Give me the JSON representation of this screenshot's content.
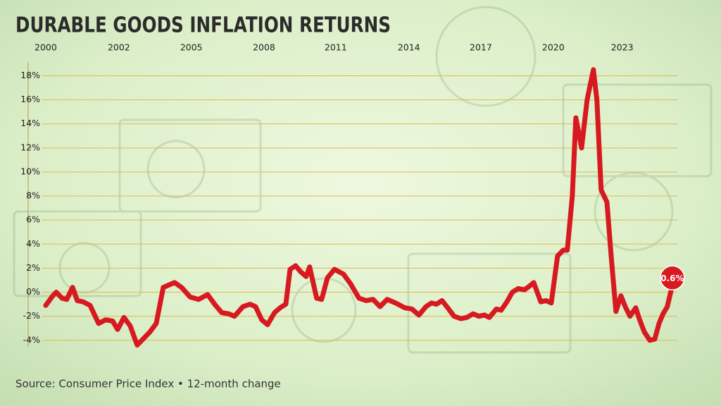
{
  "chart_data": {
    "type": "line",
    "title": "DURABLE GOODS INFLATION RETURNS",
    "source": "Source: Consumer Price Index • 12-month change",
    "color": "#d71920",
    "grid": true,
    "x": [
      2000.0,
      2000.28,
      2000.42,
      2000.65,
      2000.84,
      2001.07,
      2001.26,
      2001.49,
      2001.77,
      2002.11,
      2002.39,
      2002.67,
      2002.87,
      2003.12,
      2003.37,
      2003.65,
      2003.93,
      2004.16,
      2004.41,
      2004.69,
      2004.92,
      2005.14,
      2005.42,
      2005.76,
      2006.1,
      2006.46,
      2006.74,
      2007.02,
      2007.3,
      2007.53,
      2007.87,
      2008.15,
      2008.37,
      2008.62,
      2008.85,
      2009.13,
      2009.35,
      2009.58,
      2009.75,
      2009.97,
      2010.17,
      2010.39,
      2010.53,
      2010.81,
      2011.01,
      2011.24,
      2011.52,
      2011.88,
      2012.16,
      2012.5,
      2012.78,
      2013.06,
      2013.34,
      2013.62,
      2013.96,
      2014.33,
      2014.61,
      2014.89,
      2015.17,
      2015.39,
      2015.59,
      2015.81,
      2016.04,
      2016.29,
      2016.57,
      2016.8,
      2017.05,
      2017.28,
      2017.5,
      2017.7,
      2017.98,
      2018.17,
      2018.4,
      2018.62,
      2018.85,
      2019.1,
      2019.3,
      2019.47,
      2019.75,
      2019.97,
      2020.17,
      2020.42,
      2020.65,
      2020.81,
      2021.01,
      2021.15,
      2021.38,
      2021.6,
      2021.85,
      2021.99,
      2022.16,
      2022.39,
      2022.56,
      2022.75,
      2022.95,
      2023.12,
      2023.31,
      2023.54,
      2023.68,
      2023.88,
      2024.1,
      2024.3,
      2024.47,
      2024.63,
      2024.8,
      2025.0
    ],
    "values": [
      -1.1,
      -0.3,
      0.0,
      -0.5,
      -0.6,
      0.4,
      -0.7,
      -0.8,
      -1.1,
      -2.6,
      -2.3,
      -2.4,
      -3.1,
      -2.1,
      -2.8,
      -4.4,
      -3.8,
      -3.3,
      -2.6,
      0.4,
      0.6,
      0.8,
      0.4,
      -0.4,
      -0.6,
      -0.2,
      -1.0,
      -1.7,
      -1.8,
      -2.0,
      -1.2,
      -1.0,
      -1.2,
      -2.3,
      -2.7,
      -1.7,
      -1.3,
      -1.0,
      1.9,
      2.2,
      1.7,
      1.3,
      2.1,
      -0.5,
      -0.6,
      1.2,
      1.9,
      1.5,
      0.7,
      -0.5,
      -0.7,
      -0.6,
      -1.2,
      -0.6,
      -0.9,
      -1.3,
      -1.4,
      -1.9,
      -1.2,
      -0.9,
      -1.0,
      -0.7,
      -1.3,
      -2.0,
      -2.2,
      -2.1,
      -1.8,
      -2.0,
      -1.9,
      -2.1,
      -1.4,
      -1.5,
      -0.8,
      0.0,
      0.3,
      0.2,
      0.5,
      0.8,
      -0.8,
      -0.7,
      -0.9,
      3.0,
      3.5,
      3.5,
      8.0,
      14.5,
      12.0,
      16.0,
      18.5,
      16.0,
      8.5,
      7.5,
      3.0,
      -1.6,
      -0.3,
      -1.2,
      -2.0,
      -1.3,
      -2.2,
      -3.3,
      -4.0,
      -3.9,
      -2.6,
      -1.8,
      -1.2,
      0.6
    ],
    "value_labels": [
      null,
      null,
      null,
      null,
      null,
      null,
      null,
      null,
      null,
      null,
      null,
      null,
      null,
      null,
      null,
      null,
      null,
      null,
      null,
      null,
      null,
      null,
      null,
      null,
      null,
      null,
      null,
      null,
      null,
      null,
      null,
      null,
      null,
      null,
      null,
      null,
      null,
      null,
      null,
      null,
      null,
      null,
      null,
      null,
      null,
      null,
      null,
      null,
      null,
      null,
      null,
      null,
      null,
      null,
      null,
      null,
      null,
      null,
      null,
      null,
      null,
      null,
      null,
      null,
      null,
      null,
      null,
      null,
      null,
      null,
      null,
      null,
      null,
      null,
      null,
      null,
      null,
      null,
      null,
      null,
      null,
      null,
      null,
      null,
      null,
      null,
      null,
      null,
      null,
      null,
      null,
      null,
      null,
      null,
      null,
      null,
      null,
      null,
      null,
      null,
      null,
      null,
      null,
      null,
      null,
      "0.6%"
    ],
    "xlim": [
      1999.3,
      2025.2
    ],
    "xticks": [
      {
        "value": 2000,
        "label": "2000"
      },
      {
        "value": 2002.92,
        "label": "2002"
      },
      {
        "value": 2005.81,
        "label": "2005"
      },
      {
        "value": 2008.71,
        "label": "2008"
      },
      {
        "value": 2011.57,
        "label": "2011"
      },
      {
        "value": 2014.49,
        "label": "2014"
      },
      {
        "value": 2017.36,
        "label": "2017"
      },
      {
        "value": 2020.25,
        "label": "2020"
      },
      {
        "value": 2023.0,
        "label": "2023"
      }
    ],
    "ylim": [
      -4.6,
      19.2
    ],
    "yticks": [
      {
        "value": -4,
        "label": "-4%"
      },
      {
        "value": -2,
        "label": "-2%"
      },
      {
        "value": 0,
        "label": "0%"
      },
      {
        "value": 2,
        "label": "2%"
      },
      {
        "value": 4,
        "label": "4%"
      },
      {
        "value": 6,
        "label": "6%"
      },
      {
        "value": 8,
        "label": "8%"
      },
      {
        "value": 10,
        "label": "10%"
      },
      {
        "value": 12,
        "label": "12%"
      },
      {
        "value": 14,
        "label": "14%"
      },
      {
        "value": 16,
        "label": "16%"
      },
      {
        "value": 18,
        "label": "18%"
      }
    ]
  }
}
